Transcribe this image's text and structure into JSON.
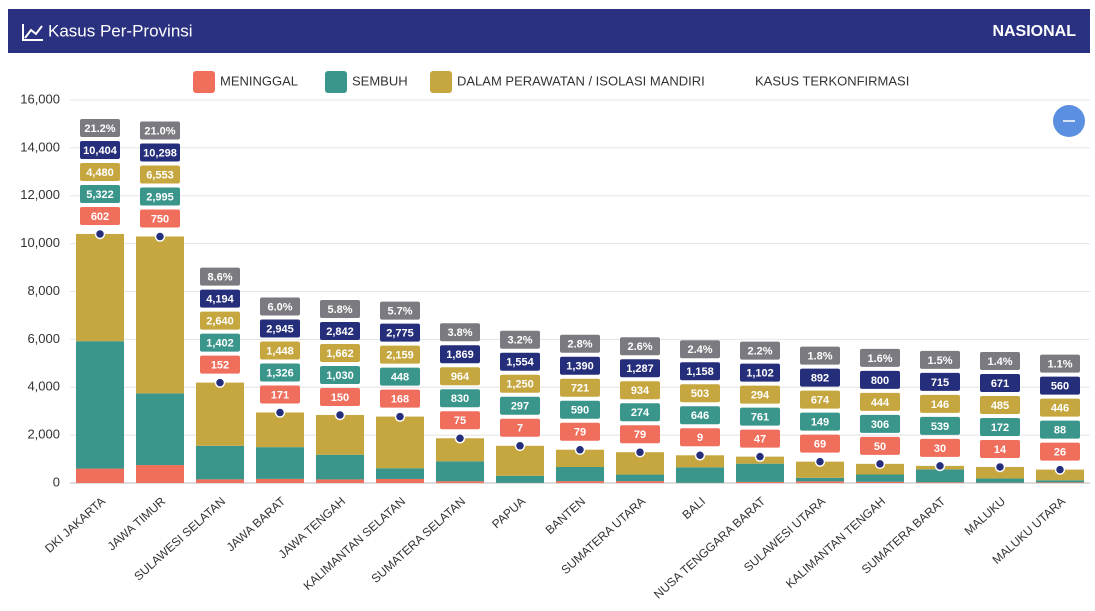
{
  "header": {
    "title": "Kasus Per-Provinsi",
    "scope": "NASIONAL"
  },
  "chart_data": {
    "type": "bar",
    "stacked": true,
    "categories": [
      "DKI JAKARTA",
      "JAWA TIMUR",
      "SULAWESI SELATAN",
      "JAWA BARAT",
      "JAWA TENGAH",
      "KALIMANTAN SELATAN",
      "SUMATERA SELATAN",
      "PAPUA",
      "BANTEN",
      "SUMATERA UTARA",
      "BALI",
      "NUSA TENGGARA BARAT",
      "SULAWESI UTARA",
      "KALIMANTAN TENGAH",
      "SUMATERA BARAT",
      "MALUKU",
      "MALUKU UTARA"
    ],
    "series": [
      {
        "name": "MENINGGAL",
        "type": "bar",
        "color": "#ef6e5c",
        "values": [
          602,
          750,
          152,
          171,
          150,
          168,
          75,
          7,
          79,
          79,
          9,
          47,
          69,
          50,
          30,
          14,
          26
        ],
        "value_labels": [
          "602",
          "750",
          "152",
          "171",
          "150",
          "168",
          "75",
          "7",
          "79",
          "79",
          "9",
          "47",
          "69",
          "50",
          "30",
          "14",
          "26"
        ]
      },
      {
        "name": "SEMBUH",
        "type": "bar",
        "color": "#3a968b",
        "values": [
          5322,
          2995,
          1402,
          1326,
          1030,
          448,
          830,
          297,
          590,
          274,
          646,
          761,
          149,
          306,
          539,
          172,
          88
        ],
        "value_labels": [
          "5,322",
          "2,995",
          "1,402",
          "1,326",
          "1,030",
          "448",
          "830",
          "297",
          "590",
          "274",
          "646",
          "761",
          "149",
          "306",
          "539",
          "172",
          "88"
        ]
      },
      {
        "name": "DALAM PERAWATAN / ISOLASI MANDIRI",
        "type": "bar",
        "color": "#c6a73f",
        "values": [
          4480,
          6553,
          2640,
          1448,
          1662,
          2159,
          964,
          1250,
          721,
          934,
          503,
          294,
          674,
          444,
          146,
          485,
          446
        ],
        "value_labels": [
          "4,480",
          "6,553",
          "2,640",
          "1,448",
          "1,662",
          "2,159",
          "964",
          "1,250",
          "721",
          "934",
          "503",
          "294",
          "674",
          "444",
          "146",
          "485",
          "446"
        ]
      },
      {
        "name": "KASUS TERKONFIRMASI",
        "type": "scatter",
        "color": "#252e7a",
        "values": [
          10404,
          10298,
          4194,
          2945,
          2842,
          2775,
          1869,
          1554,
          1390,
          1287,
          1158,
          1102,
          892,
          800,
          715,
          671,
          560
        ],
        "value_labels": [
          "10,404",
          "10,298",
          "4,194",
          "2,945",
          "2,842",
          "2,775",
          "1,869",
          "1,554",
          "1,390",
          "1,287",
          "1,158",
          "1,102",
          "892",
          "800",
          "715",
          "671",
          "560"
        ]
      }
    ],
    "share_color": "#7a7a80",
    "share_values": [
      21.2,
      21.0,
      8.6,
      6.0,
      5.8,
      5.7,
      3.8,
      3.2,
      2.8,
      2.6,
      2.4,
      2.2,
      1.8,
      1.6,
      1.5,
      1.4,
      1.1
    ],
    "share_labels": [
      "21.2%",
      "21.0%",
      "8.6%",
      "6.0%",
      "5.8%",
      "5.7%",
      "3.8%",
      "3.2%",
      "2.8%",
      "2.6%",
      "2.4%",
      "2.2%",
      "1.8%",
      "1.6%",
      "1.5%",
      "1.4%",
      "1.1%"
    ],
    "ylim": [
      0,
      16000
    ],
    "yticks": [
      0,
      {
        "value": 2000,
        "label": "2,000"
      },
      {
        "value": 4000,
        "label": "4,000"
      },
      {
        "value": 6000,
        "label": "6,000"
      },
      {
        "value": 8000,
        "label": "8,000"
      },
      {
        "value": 10000,
        "label": "10,000"
      },
      {
        "value": 12000,
        "label": "12,000"
      },
      {
        "value": 14000,
        "label": "14,000"
      },
      {
        "value": 16000,
        "label": "16,000"
      }
    ],
    "grid": true
  }
}
